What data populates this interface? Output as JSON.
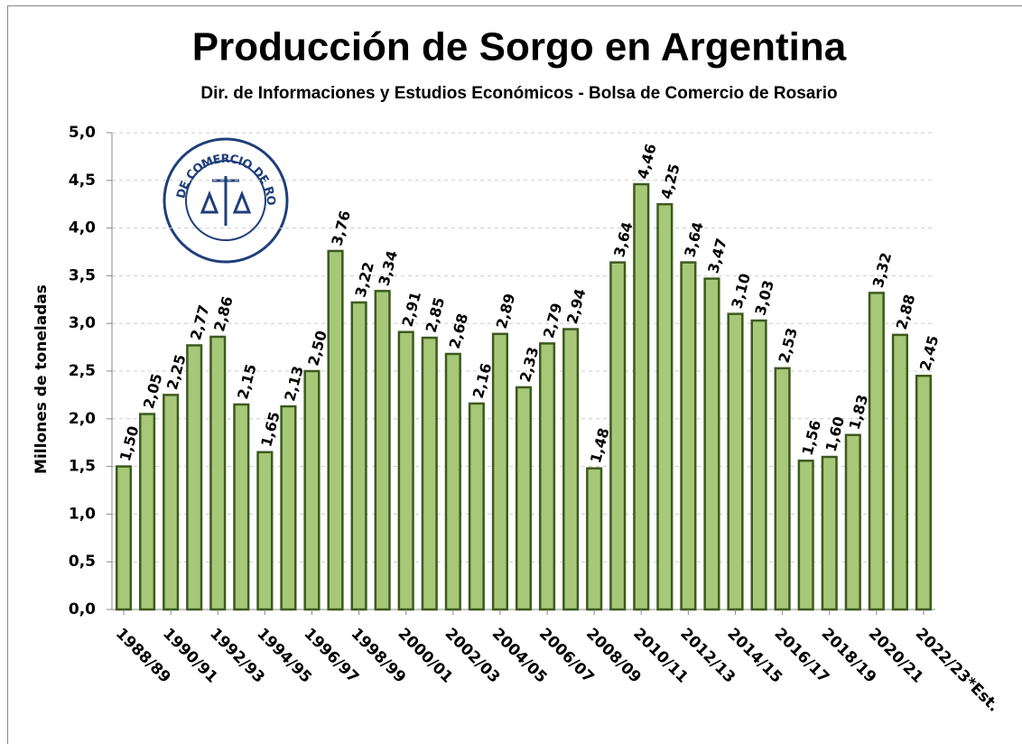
{
  "chart_data": {
    "type": "bar",
    "title": "Producción de Sorgo en Argentina",
    "subtitle": "Dir. de Informaciones y Estudios Económicos - Bolsa de Comercio de Rosario",
    "y_label": "Millones de toneladas",
    "logo_text": "BOLSA DE COMERCIO DE ROSARIO",
    "categories": [
      "1988/89",
      null,
      "1990/91",
      null,
      "1992/93",
      null,
      "1994/95",
      null,
      "1996/97",
      null,
      "1998/99",
      null,
      "2000/01",
      null,
      "2002/03",
      null,
      "2004/05",
      null,
      "2006/07",
      null,
      "2008/09",
      null,
      "2010/11",
      null,
      "2012/13",
      null,
      "2014/15",
      null,
      "2016/17",
      null,
      "2018/19",
      null,
      "2020/21",
      null,
      "2022/23*Est."
    ],
    "values": [
      1.5,
      2.05,
      2.25,
      2.77,
      2.86,
      2.15,
      1.65,
      2.13,
      2.5,
      3.76,
      3.22,
      3.34,
      2.91,
      2.85,
      2.68,
      2.16,
      2.89,
      2.33,
      2.79,
      2.94,
      1.48,
      3.64,
      4.46,
      4.25,
      3.64,
      3.47,
      3.1,
      3.03,
      2.53,
      1.56,
      1.6,
      1.83,
      3.32,
      2.88,
      2.45
    ],
    "value_labels": [
      "1,50",
      "2,05",
      "2,25",
      "2,77",
      "2,86",
      "2,15",
      "1,65",
      "2,13",
      "2,50",
      "3,76",
      "3,22",
      "3,34",
      "2,91",
      "2,85",
      "2,68",
      "2,16",
      "2,89",
      "2,33",
      "2,79",
      "2,94",
      "1,48",
      "3,64",
      "4,46",
      "4,25",
      "3,64",
      "3,47",
      "3,10",
      "3,03",
      "2,53",
      "1,56",
      "1,60",
      "1,83",
      "3,32",
      "2,88",
      "2,45"
    ],
    "color": "#a6c878",
    "ylim": [
      0,
      5
    ],
    "yticks": [
      {
        "value": 0,
        "label": "0,0"
      },
      {
        "value": 0.5,
        "label": "0,5"
      },
      {
        "value": 1,
        "label": "1,0"
      },
      {
        "value": 1.5,
        "label": "1,5"
      },
      {
        "value": 2,
        "label": "2,0"
      },
      {
        "value": 2.5,
        "label": "2,5"
      },
      {
        "value": 3,
        "label": "3,0"
      },
      {
        "value": 3.5,
        "label": "3,5"
      },
      {
        "value": 4,
        "label": "4,0"
      },
      {
        "value": 4.5,
        "label": "4,5"
      },
      {
        "value": 5,
        "label": "5,0"
      }
    ],
    "grid": true
  }
}
